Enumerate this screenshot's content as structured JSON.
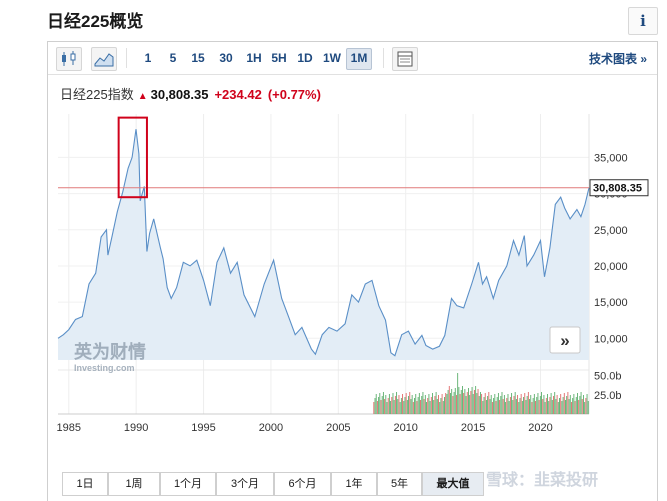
{
  "page": {
    "title": "日经225概览",
    "info_label": "i"
  },
  "toolbar": {
    "candles_icon": "candlestick-icon",
    "area_icon": "area-chart-icon",
    "intervals": [
      "1",
      "5",
      "15",
      "30",
      "1H",
      "5H",
      "1D",
      "1W",
      "1M"
    ],
    "active_interval": "1M",
    "table_icon": "table-icon",
    "tech_chart_label": "技术图表 »"
  },
  "quote": {
    "name": "日经225指数",
    "price": "30,808.35",
    "change": "+234.42",
    "change_pct": "(+0.77%)",
    "up_color": "#d0021b"
  },
  "watermark": {
    "text_cn": "英为财情",
    "text_en": "Investing.com",
    "snowball": "雪球：韭菜投研"
  },
  "chart_nav": {
    "next_label": "»"
  },
  "chart_data": {
    "type": "area",
    "title": "",
    "price_labels": [
      "35,000",
      "30,000",
      "25,000",
      "20,000",
      "15,000",
      "10,000"
    ],
    "price_ticks": [
      35000,
      30000,
      25000,
      20000,
      15000,
      10000
    ],
    "volume_labels": [
      "50.0b",
      "25.0b"
    ],
    "volume_ticks": [
      50,
      25
    ],
    "x_labels": [
      "1985",
      "1990",
      "1995",
      "2000",
      "2005",
      "2010",
      "2015",
      "2020"
    ],
    "x_ticks": [
      1985,
      1990,
      1995,
      2000,
      2005,
      2010,
      2015,
      2020
    ],
    "xlim": [
      1984.2,
      2023.6
    ],
    "ylim": [
      7000,
      41000
    ],
    "current_price": 30808.35,
    "current_price_label": "30,808.35",
    "line_color": "#5a8fc7",
    "fill_color": "#e3edf6",
    "reference_line_color": "#e07a7a",
    "highlight_box": {
      "x_range": [
        1988.7,
        1990.8
      ],
      "y_range": [
        29500,
        40500
      ],
      "color": "#d0021b"
    },
    "series": [
      {
        "values": [
          [
            1984.2,
            10000
          ],
          [
            1984.6,
            10500
          ],
          [
            1985.0,
            11200
          ],
          [
            1985.5,
            12600
          ],
          [
            1986.0,
            13000
          ],
          [
            1986.5,
            17500
          ],
          [
            1987.0,
            19000
          ],
          [
            1987.4,
            24000
          ],
          [
            1987.8,
            25000
          ],
          [
            1987.9,
            21500
          ],
          [
            1988.2,
            24000
          ],
          [
            1988.6,
            27500
          ],
          [
            1989.0,
            30200
          ],
          [
            1989.4,
            33500
          ],
          [
            1989.7,
            35000
          ],
          [
            1989.99,
            38900
          ],
          [
            1990.2,
            35500
          ],
          [
            1990.3,
            29000
          ],
          [
            1990.6,
            31000
          ],
          [
            1990.8,
            22000
          ],
          [
            1991.0,
            24500
          ],
          [
            1991.3,
            26500
          ],
          [
            1991.8,
            22500
          ],
          [
            1992.0,
            21000
          ],
          [
            1992.3,
            17000
          ],
          [
            1992.6,
            15500
          ],
          [
            1993.0,
            17000
          ],
          [
            1993.5,
            20500
          ],
          [
            1994.0,
            20000
          ],
          [
            1994.5,
            20800
          ],
          [
            1995.0,
            18000
          ],
          [
            1995.5,
            14500
          ],
          [
            1996.0,
            20500
          ],
          [
            1996.5,
            22500
          ],
          [
            1997.0,
            19000
          ],
          [
            1997.5,
            20500
          ],
          [
            1998.0,
            16000
          ],
          [
            1998.8,
            13000
          ],
          [
            1999.5,
            17500
          ],
          [
            2000.2,
            20800
          ],
          [
            2000.8,
            15500
          ],
          [
            2001.3,
            13000
          ],
          [
            2001.8,
            10500
          ],
          [
            2002.3,
            11500
          ],
          [
            2003.0,
            8500
          ],
          [
            2003.3,
            7800
          ],
          [
            2003.8,
            10500
          ],
          [
            2004.3,
            11500
          ],
          [
            2004.9,
            11000
          ],
          [
            2005.5,
            12000
          ],
          [
            2006.0,
            16000
          ],
          [
            2006.5,
            15000
          ],
          [
            2007.0,
            17500
          ],
          [
            2007.5,
            18000
          ],
          [
            2008.0,
            14500
          ],
          [
            2008.5,
            12500
          ],
          [
            2008.9,
            8000
          ],
          [
            2009.2,
            7600
          ],
          [
            2009.7,
            10500
          ],
          [
            2010.2,
            11000
          ],
          [
            2010.7,
            9200
          ],
          [
            2011.2,
            10400
          ],
          [
            2011.5,
            9000
          ],
          [
            2012.0,
            8500
          ],
          [
            2012.5,
            8900
          ],
          [
            2012.9,
            10400
          ],
          [
            2013.4,
            15500
          ],
          [
            2013.8,
            14500
          ],
          [
            2014.3,
            14200
          ],
          [
            2014.9,
            17500
          ],
          [
            2015.4,
            20500
          ],
          [
            2015.7,
            17500
          ],
          [
            2016.0,
            18500
          ],
          [
            2016.5,
            15500
          ],
          [
            2016.9,
            18000
          ],
          [
            2017.5,
            20000
          ],
          [
            2018.0,
            23500
          ],
          [
            2018.4,
            21500
          ],
          [
            2018.8,
            24200
          ],
          [
            2019.0,
            20000
          ],
          [
            2019.5,
            21500
          ],
          [
            2020.0,
            23500
          ],
          [
            2020.3,
            18500
          ],
          [
            2020.7,
            22500
          ],
          [
            2021.1,
            28500
          ],
          [
            2021.5,
            29500
          ],
          [
            2021.8,
            28000
          ],
          [
            2022.2,
            26500
          ],
          [
            2022.7,
            27800
          ],
          [
            2023.0,
            26800
          ],
          [
            2023.3,
            28500
          ],
          [
            2023.6,
            30808.35
          ]
        ]
      }
    ],
    "volume_start": 2007.6,
    "volume_end": 2023.6
  },
  "range_tabs": [
    "1日",
    "1周",
    "1个月",
    "3个月",
    "6个月",
    "1年",
    "5年",
    "最大值"
  ],
  "active_range": "最大值"
}
